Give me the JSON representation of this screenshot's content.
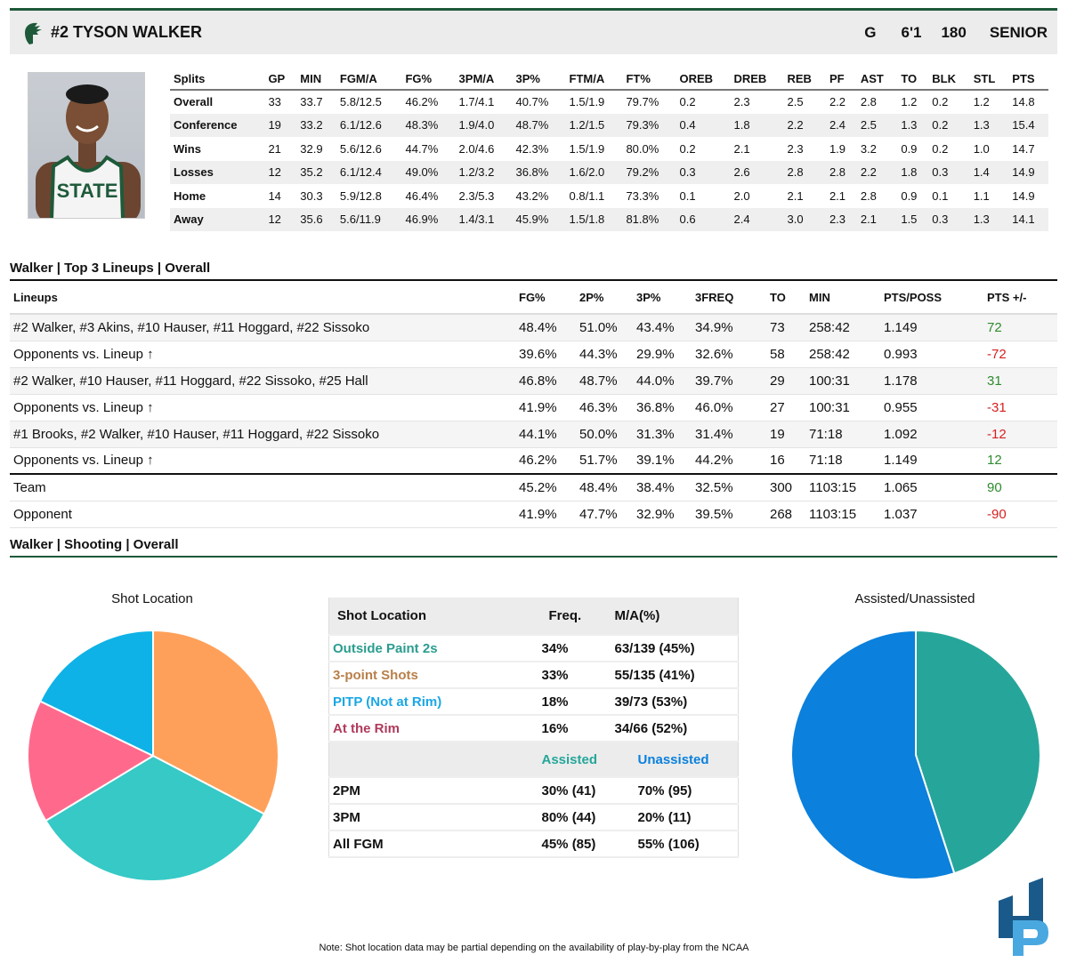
{
  "player": {
    "name": "#2 TYSON WALKER",
    "position": "G",
    "height": "6'1",
    "weight": "180",
    "class": "SENIOR"
  },
  "splits": {
    "headers": [
      "Splits",
      "GP",
      "MIN",
      "FGM/A",
      "FG%",
      "3PM/A",
      "3P%",
      "FTM/A",
      "FT%",
      "OREB",
      "DREB",
      "REB",
      "PF",
      "AST",
      "TO",
      "BLK",
      "STL",
      "PTS"
    ],
    "rows": [
      [
        "Overall",
        "33",
        "33.7",
        "5.8/12.5",
        "46.2%",
        "1.7/4.1",
        "40.7%",
        "1.5/1.9",
        "79.7%",
        "0.2",
        "2.3",
        "2.5",
        "2.2",
        "2.8",
        "1.2",
        "0.2",
        "1.2",
        "14.8"
      ],
      [
        "Conference",
        "19",
        "33.2",
        "6.1/12.6",
        "48.3%",
        "1.9/4.0",
        "48.7%",
        "1.2/1.5",
        "79.3%",
        "0.4",
        "1.8",
        "2.2",
        "2.4",
        "2.5",
        "1.3",
        "0.2",
        "1.3",
        "15.4"
      ],
      [
        "Wins",
        "21",
        "32.9",
        "5.6/12.6",
        "44.7%",
        "2.0/4.6",
        "42.3%",
        "1.5/1.9",
        "80.0%",
        "0.2",
        "2.1",
        "2.3",
        "1.9",
        "3.2",
        "0.9",
        "0.2",
        "1.0",
        "14.7"
      ],
      [
        "Losses",
        "12",
        "35.2",
        "6.1/12.4",
        "49.0%",
        "1.2/3.2",
        "36.8%",
        "1.6/2.0",
        "79.2%",
        "0.3",
        "2.6",
        "2.8",
        "2.8",
        "2.2",
        "1.8",
        "0.3",
        "1.4",
        "14.9"
      ],
      [
        "Home",
        "14",
        "30.3",
        "5.9/12.8",
        "46.4%",
        "2.3/5.3",
        "43.2%",
        "0.8/1.1",
        "73.3%",
        "0.1",
        "2.0",
        "2.1",
        "2.1",
        "2.8",
        "0.9",
        "0.1",
        "1.1",
        "14.9"
      ],
      [
        "Away",
        "12",
        "35.6",
        "5.6/11.9",
        "46.9%",
        "1.4/3.1",
        "45.9%",
        "1.5/1.8",
        "81.8%",
        "0.6",
        "2.4",
        "3.0",
        "2.3",
        "2.1",
        "1.5",
        "0.3",
        "1.3",
        "14.1"
      ]
    ]
  },
  "lineups": {
    "title": "Walker | Top 3 Lineups | Overall",
    "headers": [
      "Lineups",
      "FG%",
      "2P%",
      "3P%",
      "3FREQ",
      "TO",
      "MIN",
      "PTS/POSS",
      "PTS +/-"
    ],
    "rows": [
      [
        "#2 Walker, #3 Akins, #10 Hauser, #11 Hoggard, #22 Sissoko",
        "48.4%",
        "51.0%",
        "43.4%",
        "34.9%",
        "73",
        "258:42",
        "1.149",
        "72"
      ],
      [
        "Opponents vs. Lineup ↑",
        "39.6%",
        "44.3%",
        "29.9%",
        "32.6%",
        "58",
        "258:42",
        "0.993",
        "-72"
      ],
      [
        "#2 Walker, #10 Hauser, #11 Hoggard, #22 Sissoko, #25 Hall",
        "46.8%",
        "48.7%",
        "44.0%",
        "39.7%",
        "29",
        "100:31",
        "1.178",
        "31"
      ],
      [
        "Opponents vs. Lineup ↑",
        "41.9%",
        "46.3%",
        "36.8%",
        "46.0%",
        "27",
        "100:31",
        "0.955",
        "-31"
      ],
      [
        "#1 Brooks, #2 Walker, #10 Hauser, #11 Hoggard, #22 Sissoko",
        "44.1%",
        "50.0%",
        "31.3%",
        "31.4%",
        "19",
        "71:18",
        "1.092",
        "-12"
      ],
      [
        "Opponents vs. Lineup ↑",
        "46.2%",
        "51.7%",
        "39.1%",
        "44.2%",
        "16",
        "71:18",
        "1.149",
        "12"
      ],
      [
        "Team",
        "45.2%",
        "48.4%",
        "38.4%",
        "32.5%",
        "300",
        "1103:15",
        "1.065",
        "90"
      ],
      [
        "Opponent",
        "41.9%",
        "47.7%",
        "32.9%",
        "39.5%",
        "268",
        "1103:15",
        "1.037",
        "-90"
      ]
    ]
  },
  "shooting": {
    "title": "Walker | Shooting | Overall",
    "shot_chart_title": "Shot Location",
    "assist_chart_title": "Assisted/Unassisted",
    "table_headers": [
      "Shot Location",
      "Freq.",
      "M/A(%)"
    ],
    "locations": [
      {
        "label": "Outside Paint 2s",
        "freq": "34%",
        "ma": "63/139 (45%)",
        "color": "#2a9d8f",
        "pie": "#36c9c6"
      },
      {
        "label": "3-point Shots",
        "freq": "33%",
        "ma": "55/135 (41%)",
        "color": "#b8804a",
        "pie": "#ffa05a"
      },
      {
        "label": "PITP (Not at Rim)",
        "freq": "18%",
        "ma": "39/73 (53%)",
        "color": "#1aa7e6",
        "pie": "#0fb2e6"
      },
      {
        "label": "At the Rim",
        "freq": "16%",
        "ma": "34/66 (52%)",
        "color": "#b03a5b",
        "pie": "#ff6a8c"
      }
    ],
    "assist_headers": [
      "Assisted",
      "Unassisted"
    ],
    "assist_rows": [
      [
        "2PM",
        "30% (41)",
        "70% (95)"
      ],
      [
        "3PM",
        "80% (44)",
        "20% (11)"
      ],
      [
        "All FGM",
        "45% (85)",
        "55% (106)"
      ]
    ],
    "colors": {
      "assisted": "#26a69a",
      "unassisted": "#0b80dc"
    }
  },
  "chart_data": [
    {
      "type": "pie",
      "title": "Shot Location",
      "categories": [
        "3-point Shots",
        "Outside Paint 2s",
        "At the Rim",
        "PITP (Not at Rim)"
      ],
      "values": [
        33,
        34,
        16,
        18
      ]
    },
    {
      "type": "pie",
      "title": "Assisted/Unassisted",
      "categories": [
        "Assisted",
        "Unassisted"
      ],
      "values": [
        45,
        55
      ]
    }
  ],
  "note": "Note: Shot location data may be partial depending on the availability of play-by-play from the NCAA"
}
